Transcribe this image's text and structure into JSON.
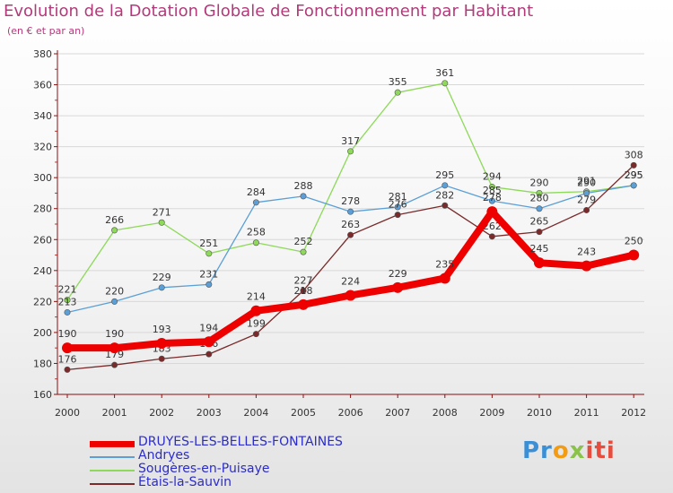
{
  "header": {
    "title": "Evolution de la Dotation Globale de Fonctionnement par Habitant",
    "subtitle": "(en € et par an)"
  },
  "colors": {
    "title": "#b33a7a",
    "axis": "#8a1010",
    "grid": "#d8d8d8",
    "label": "#333333"
  },
  "chart_data": {
    "type": "line",
    "title": "Evolution de la Dotation Globale de Fonctionnement par Habitant",
    "subtitle": "(en € et par an)",
    "xlabel": "",
    "ylabel": "",
    "x": [
      "2000",
      "2001",
      "2002",
      "2003",
      "2004",
      "2005",
      "2006",
      "2007",
      "2008",
      "2009",
      "2010",
      "2011",
      "2012"
    ],
    "ylim": [
      160,
      380
    ],
    "yticks": [
      160,
      180,
      200,
      220,
      240,
      260,
      280,
      300,
      320,
      340,
      360,
      380
    ],
    "grid": "horizontal",
    "legend_position": "bottom-left",
    "series": [
      {
        "name": "Sougères-en-Puisaye",
        "color": "#8ed95a",
        "style": "thin",
        "values": [
          221,
          266,
          271,
          251,
          258,
          252,
          317,
          355,
          361,
          294,
          290,
          291,
          295
        ]
      },
      {
        "name": "Andryes",
        "color": "#5b9fd6",
        "style": "thin",
        "values": [
          213,
          220,
          229,
          231,
          284,
          288,
          278,
          281,
          295,
          285,
          280,
          290,
          295
        ]
      },
      {
        "name": "Étais-la-Sauvin",
        "color": "#7a2a2a",
        "style": "thin",
        "values": [
          176,
          179,
          183,
          186,
          199,
          227,
          263,
          276,
          282,
          262,
          265,
          279,
          308
        ]
      },
      {
        "name": "DRUYES-LES-BELLES-FONTAINES",
        "color": "#ee0000",
        "style": "thick",
        "values": [
          190,
          190,
          193,
          194,
          214,
          218,
          224,
          229,
          235,
          278,
          245,
          243,
          250
        ]
      }
    ]
  },
  "legend": {
    "items": [
      {
        "label": "DRUYES-LES-BELLES-FONTAINES",
        "color": "#ee0000",
        "thickness": "thick"
      },
      {
        "label": "Andryes",
        "color": "#5b9fd6",
        "thickness": "thin"
      },
      {
        "label": "Sougères-en-Puisaye",
        "color": "#8ed95a",
        "thickness": "thin"
      },
      {
        "label": "Étais-la-Sauvin",
        "color": "#7a2a2a",
        "thickness": "thin"
      }
    ]
  },
  "brand": {
    "parts": [
      "Pr",
      "o",
      "x",
      "iti"
    ]
  }
}
